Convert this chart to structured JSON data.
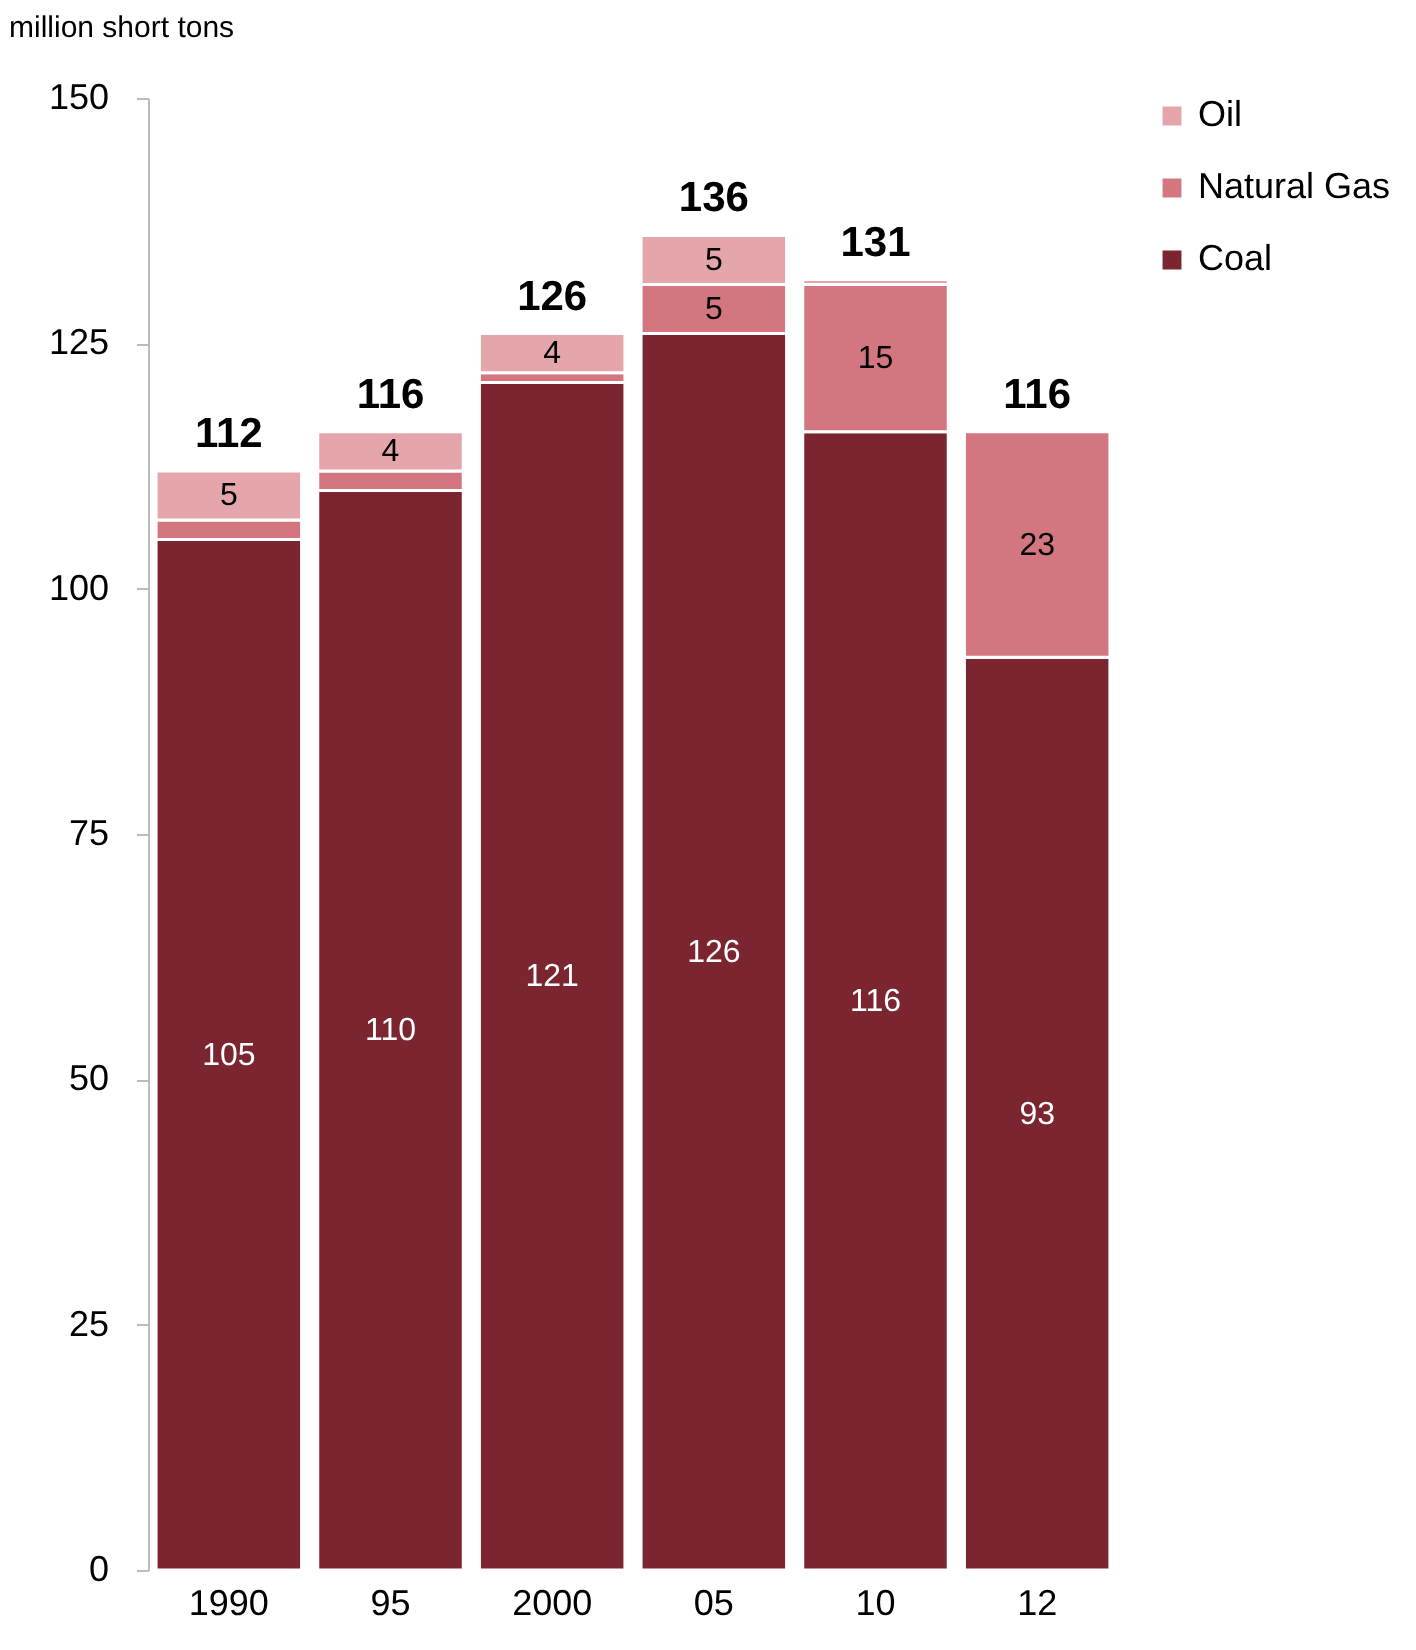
{
  "chart_data": {
    "type": "bar",
    "stacked": true,
    "ylabel": "million short tons",
    "categories": [
      "1990",
      "95",
      "2000",
      "05",
      "10",
      "12"
    ],
    "series": [
      {
        "name": "Coal",
        "color": "#7a2530",
        "values": [
          105,
          110,
          121,
          126,
          116,
          93
        ],
        "value_labels": [
          "105",
          "110",
          "121",
          "126",
          "116",
          "93"
        ]
      },
      {
        "name": "Natural Gas",
        "color": "#d47680",
        "values": [
          2,
          2,
          1,
          5,
          15,
          23
        ],
        "value_labels": [
          null,
          null,
          null,
          "5",
          "15",
          "23"
        ]
      },
      {
        "name": "Oil",
        "color": "#e4a5ab",
        "values": [
          5,
          4,
          4,
          5,
          0.5,
          null
        ],
        "value_labels": [
          "5",
          "4",
          "4",
          "5",
          null,
          null
        ]
      }
    ],
    "totals": [
      "112",
      "116",
      "126",
      "136",
      "131",
      "116"
    ],
    "ylim": [
      0,
      150
    ],
    "yticks": [
      0,
      25,
      50,
      75,
      100,
      125,
      150
    ],
    "grid": false,
    "legend": "right"
  }
}
